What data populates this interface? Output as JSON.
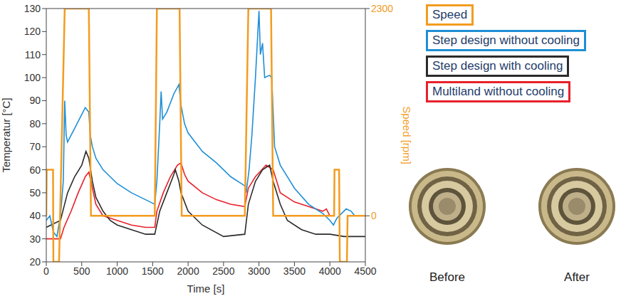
{
  "chart_data": {
    "type": "line",
    "x_label": "Time [s]",
    "y_label": "Temperatur [°C]",
    "y2_label": "Speed [rpm]",
    "xlim": [
      0,
      4500
    ],
    "xticks": [
      0,
      500,
      1000,
      1500,
      2000,
      2500,
      3000,
      3500,
      4000,
      4500
    ],
    "ylim": [
      20,
      130
    ],
    "yticks": [
      20,
      30,
      40,
      50,
      60,
      70,
      80,
      90,
      100,
      110,
      120,
      130
    ],
    "y2lim": [
      -511,
      2300
    ],
    "y2ticks": [
      0,
      2300
    ],
    "grid": false,
    "legend": "right",
    "series": [
      {
        "name": "Speed",
        "color": "#f39c1f",
        "axis": "y2",
        "x": [
          0,
          5,
          95,
          100,
          180,
          260,
          600,
          630,
          1530,
          1560,
          1880,
          1910,
          2800,
          2850,
          3170,
          3200,
          4060,
          4065,
          4130,
          4140,
          4240,
          4250,
          4500
        ],
        "values": [
          0,
          511,
          511,
          -511,
          -511,
          2300,
          2300,
          0,
          0,
          2300,
          2300,
          0,
          0,
          2300,
          2300,
          0,
          0,
          511,
          511,
          -511,
          -511,
          0,
          0
        ]
      },
      {
        "name": "Step design without cooling",
        "color": "#1f8fd6",
        "x": [
          0,
          50,
          100,
          150,
          200,
          240,
          260,
          280,
          300,
          400,
          500,
          550,
          600,
          620,
          650,
          700,
          800,
          900,
          1000,
          1200,
          1400,
          1530,
          1560,
          1600,
          1620,
          1640,
          1700,
          1800,
          1870,
          1900,
          1950,
          2000,
          2200,
          2400,
          2600,
          2800,
          2820,
          2860,
          2900,
          2950,
          3000,
          3020,
          3050,
          3080,
          3150,
          3180,
          3220,
          3300,
          3500,
          3700,
          3900,
          4000,
          4050,
          4100,
          4230,
          4300,
          4350
        ],
        "values": [
          38,
          40,
          33,
          31,
          40,
          55,
          90,
          75,
          72,
          78,
          84,
          87,
          85,
          75,
          70,
          65,
          60,
          57,
          54,
          50,
          47,
          45,
          55,
          80,
          94,
          82,
          85,
          93,
          97,
          88,
          80,
          76,
          68,
          63,
          57,
          53,
          50,
          60,
          75,
          100,
          129,
          110,
          115,
          100,
          101,
          100,
          70,
          62,
          52,
          45,
          41,
          38,
          36,
          39,
          43,
          42,
          40
        ]
      },
      {
        "name": "Step design with cooling",
        "color": "#2b2b2b",
        "x": [
          0,
          200,
          300,
          400,
          500,
          560,
          600,
          650,
          700,
          800,
          900,
          1000,
          1200,
          1400,
          1530,
          1600,
          1700,
          1800,
          1820,
          1870,
          1900,
          2000,
          2200,
          2500,
          2800,
          2850,
          2950,
          3050,
          3150,
          3200,
          3300,
          3400,
          3600,
          3800,
          4000,
          4200,
          4500
        ],
        "values": [
          35,
          38,
          50,
          57,
          62,
          68,
          65,
          55,
          48,
          42,
          38,
          36,
          34,
          32,
          32,
          42,
          50,
          58,
          60,
          55,
          50,
          42,
          36,
          31,
          32,
          45,
          55,
          60,
          62,
          55,
          45,
          38,
          34,
          32,
          32,
          31,
          31
        ]
      },
      {
        "name": "Multiland without cooling",
        "color": "#e8202a",
        "x": [
          0,
          200,
          250,
          350,
          450,
          550,
          600,
          650,
          700,
          800,
          1000,
          1200,
          1400,
          1530,
          1560,
          1650,
          1750,
          1850,
          1900,
          1950,
          2000,
          2200,
          2400,
          2600,
          2800,
          2850,
          2950,
          3100,
          3200,
          3250,
          3300,
          3500,
          3700,
          3900,
          3950,
          4000
        ],
        "values": [
          30,
          30,
          35,
          42,
          50,
          57,
          59,
          52,
          45,
          40,
          38,
          36,
          35,
          35,
          42,
          50,
          57,
          62,
          63,
          58,
          55,
          50,
          47,
          45,
          44,
          52,
          57,
          62,
          60,
          55,
          50,
          46,
          44,
          42,
          43,
          40
        ]
      }
    ]
  },
  "images": [
    {
      "label": "Before"
    },
    {
      "label": "After"
    }
  ]
}
